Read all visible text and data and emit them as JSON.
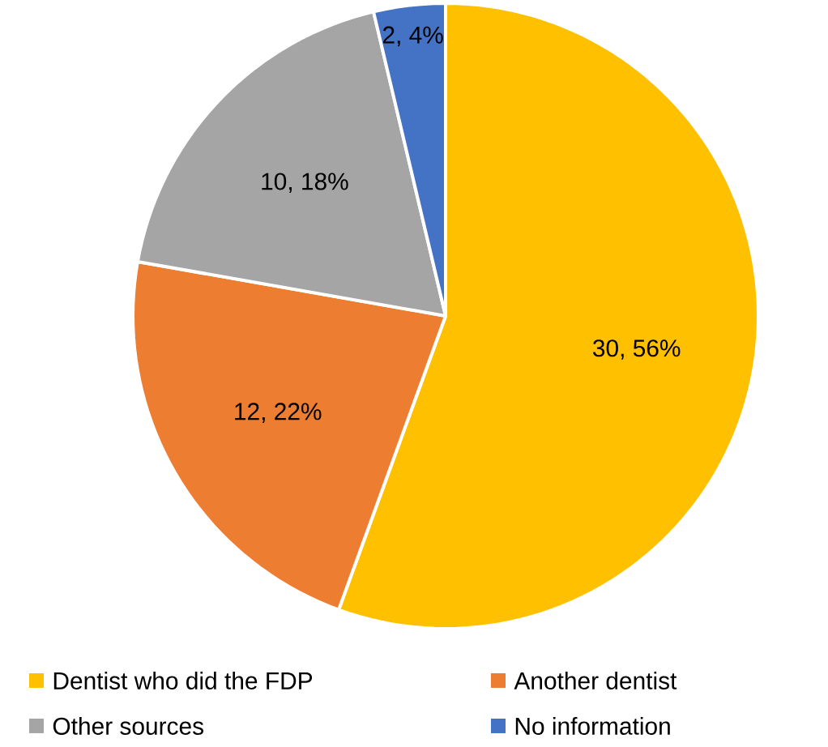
{
  "chart_data": {
    "type": "pie",
    "categories": [
      "Dentist who did the FDP",
      "Another dentist",
      "Other sources",
      "No information"
    ],
    "values": [
      30,
      12,
      10,
      2
    ],
    "value_labels": [
      "30, 56%",
      "12, 22%",
      "10, 18%",
      "2, 4%"
    ],
    "colors": [
      "#ffc000",
      "#ed7d31",
      "#a5a5a5",
      "#4472c4"
    ],
    "legend": "bottom"
  }
}
